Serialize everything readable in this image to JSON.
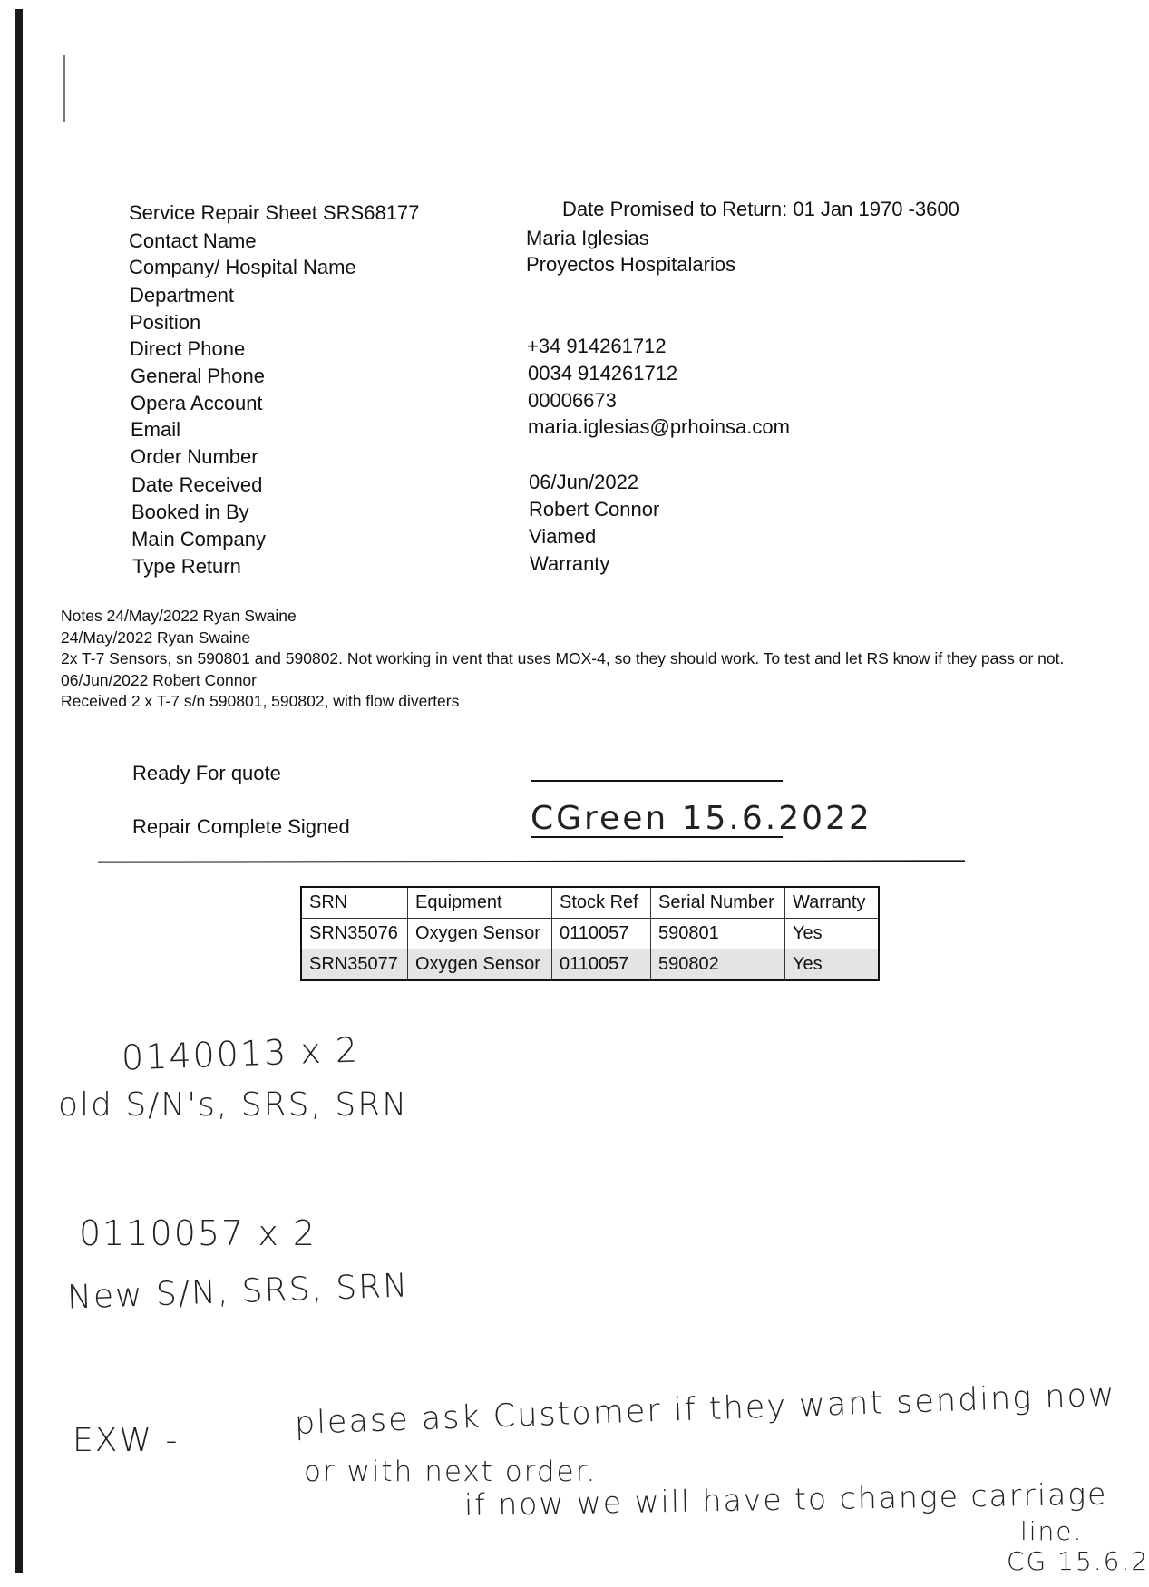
{
  "header": {
    "title": "Service Repair Sheet SRS68177",
    "date_promised": "Date Promised to Return: 01 Jan 1970 -3600"
  },
  "fields": [
    {
      "label": "Contact Name",
      "value": "Maria Iglesias"
    },
    {
      "label": "Company/ Hospital Name",
      "value": "Proyectos Hospitalarios"
    },
    {
      "label": "Department",
      "value": ""
    },
    {
      "label": "Position",
      "value": ""
    },
    {
      "label": "Direct Phone",
      "value": "+34 914261712"
    },
    {
      "label": "General Phone",
      "value": "0034 914261712"
    },
    {
      "label": "Opera Account",
      "value": "00006673"
    },
    {
      "label": "Email",
      "value": "maria.iglesias@prhoinsa.com"
    },
    {
      "label": "Order Number",
      "value": ""
    },
    {
      "label": "Date Received",
      "value": "06/Jun/2022"
    },
    {
      "label": "Booked in By",
      "value": "Robert Connor"
    },
    {
      "label": "Main Company",
      "value": "Viamed"
    },
    {
      "label": "Type Return",
      "value": "Warranty"
    }
  ],
  "notes": [
    "Notes 24/May/2022 Ryan Swaine",
    "24/May/2022 Ryan Swaine",
    "2x T-7 Sensors, sn 590801 and 590802. Not working in vent that uses MOX-4, so they should work. To test and let RS know if they pass or not.",
    "06/Jun/2022 Robert Connor",
    "Received 2 x T-7 s/n 590801, 590802, with flow diverters"
  ],
  "signoff": {
    "ready_label": "Ready For quote",
    "complete_label": "Repair Complete Signed",
    "complete_signature": "CGreen 15.6.2022"
  },
  "table": {
    "headers": [
      "SRN",
      "Equipment",
      "Stock Ref",
      "Serial Number",
      "Warranty"
    ],
    "rows": [
      [
        "SRN35076",
        "Oxygen Sensor",
        "0110057",
        "590801",
        "Yes"
      ],
      [
        "SRN35077",
        "Oxygen Sensor",
        "0110057",
        "590802",
        "Yes"
      ]
    ]
  },
  "handwritten": {
    "line1": "0140013  x 2",
    "line2": "old S/N's, SRS, SRN",
    "line3": "0110057  x 2",
    "line4": "New S/N, SRS, SRN",
    "exw": "EXW  -",
    "note1": "please ask Customer if they want sending now",
    "note2": "or with next order.",
    "note3": "if now we will have to change carriage",
    "note4": "line.",
    "note5": "CG 15.6.2"
  }
}
